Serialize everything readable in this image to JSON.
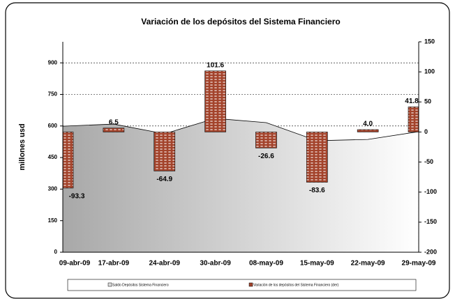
{
  "chart_data": {
    "type": "combo",
    "title": "Variación de los depósitos  del Sistema Financiero",
    "y_label": "millones usd",
    "categories": [
      "09-abr-09",
      "17-abr-09",
      "24-abr-09",
      "30-abr-09",
      "08-may-09",
      "15-may-09",
      "22-may-09",
      "29-may-09"
    ],
    "series": [
      {
        "name": "Saldo Depósitos  Sistema Financiero",
        "type": "area",
        "color": "#a8a8a8",
        "values": [
          599,
          609,
          563,
          636,
          616,
          530,
          536,
          573
        ]
      },
      {
        "name": "Variación de los depósitos  del Sistema Financiero (der)",
        "type": "bar",
        "axis": "y2",
        "color": "#a3432b",
        "values": [
          -93.3,
          6.5,
          -64.9,
          101.6,
          -26.6,
          -83.6,
          4.0,
          41.8
        ],
        "value_labels": [
          "-93.3",
          "6.5",
          "-64.9",
          "101.6",
          "-26.6",
          "-83.6",
          "4.0",
          "41.8"
        ]
      }
    ],
    "ylim": [
      0,
      1000
    ],
    "yticks": [
      0,
      150,
      300,
      450,
      600,
      750,
      900
    ],
    "y2lim": [
      -200,
      150
    ],
    "y2ticks": [
      -200,
      -150,
      -100,
      -50,
      0,
      50,
      100,
      150
    ],
    "grid": true,
    "legend": "bottom"
  }
}
